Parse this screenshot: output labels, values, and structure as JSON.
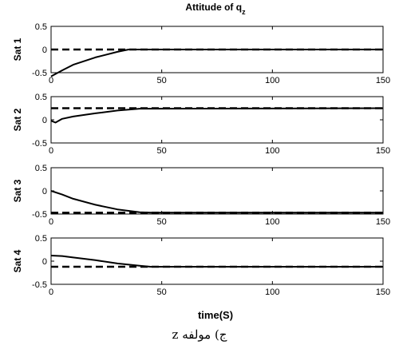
{
  "figure": {
    "title": "Attitude of q",
    "title_subscript": "z",
    "xlabel": "time(S)",
    "caption": "ج) مولفه z"
  },
  "chart_data": [
    {
      "type": "line",
      "ylabel": "Sat 1",
      "xlim": [
        0,
        150
      ],
      "ylim": [
        -0.5,
        0.5
      ],
      "xticks": [
        "0",
        "50",
        "100",
        "150"
      ],
      "yticks": [
        "0.5",
        "0",
        "-0.5"
      ],
      "series": [
        {
          "style": "solid",
          "x": [
            0,
            5,
            10,
            20,
            30,
            35,
            40,
            150
          ],
          "y": [
            -0.58,
            -0.45,
            -0.33,
            -0.17,
            -0.05,
            0.0,
            0.0,
            0.0
          ]
        },
        {
          "style": "dashed",
          "x": [
            0,
            150
          ],
          "y": [
            0.0,
            0.0
          ]
        }
      ]
    },
    {
      "type": "line",
      "ylabel": "Sat 2",
      "xlim": [
        0,
        150
      ],
      "ylim": [
        -0.5,
        0.5
      ],
      "xticks": [
        "0",
        "50",
        "100",
        "150"
      ],
      "yticks": [
        "0.5",
        "0",
        "-0.5"
      ],
      "series": [
        {
          "style": "solid",
          "x": [
            0,
            2,
            5,
            10,
            20,
            30,
            40,
            150
          ],
          "y": [
            -0.02,
            -0.06,
            0.02,
            0.07,
            0.14,
            0.2,
            0.24,
            0.25
          ]
        },
        {
          "style": "dashed",
          "x": [
            0,
            150
          ],
          "y": [
            0.25,
            0.25
          ]
        }
      ]
    },
    {
      "type": "line",
      "ylabel": "Sat 3",
      "xlim": [
        0,
        150
      ],
      "ylim": [
        -0.5,
        0.5
      ],
      "xticks": [
        "0",
        "50",
        "100",
        "150"
      ],
      "yticks": [
        "0.5",
        "0",
        "-0.5"
      ],
      "series": [
        {
          "style": "solid",
          "x": [
            0,
            5,
            10,
            20,
            30,
            40,
            45,
            150
          ],
          "y": [
            0.0,
            -0.08,
            -0.17,
            -0.3,
            -0.4,
            -0.46,
            -0.47,
            -0.47
          ]
        },
        {
          "style": "dashed",
          "x": [
            0,
            150
          ],
          "y": [
            -0.47,
            -0.47
          ]
        }
      ]
    },
    {
      "type": "line",
      "ylabel": "Sat 4",
      "xlim": [
        0,
        150
      ],
      "ylim": [
        -0.5,
        0.5
      ],
      "xticks": [
        "0",
        "50",
        "100",
        "150"
      ],
      "yticks": [
        "0.5",
        "0",
        "-0.5"
      ],
      "series": [
        {
          "style": "solid",
          "x": [
            0,
            5,
            10,
            20,
            30,
            40,
            45,
            150
          ],
          "y": [
            0.12,
            0.11,
            0.08,
            0.02,
            -0.05,
            -0.1,
            -0.12,
            -0.12
          ]
        },
        {
          "style": "dashed",
          "x": [
            0,
            150
          ],
          "y": [
            -0.12,
            -0.12
          ]
        }
      ]
    }
  ]
}
